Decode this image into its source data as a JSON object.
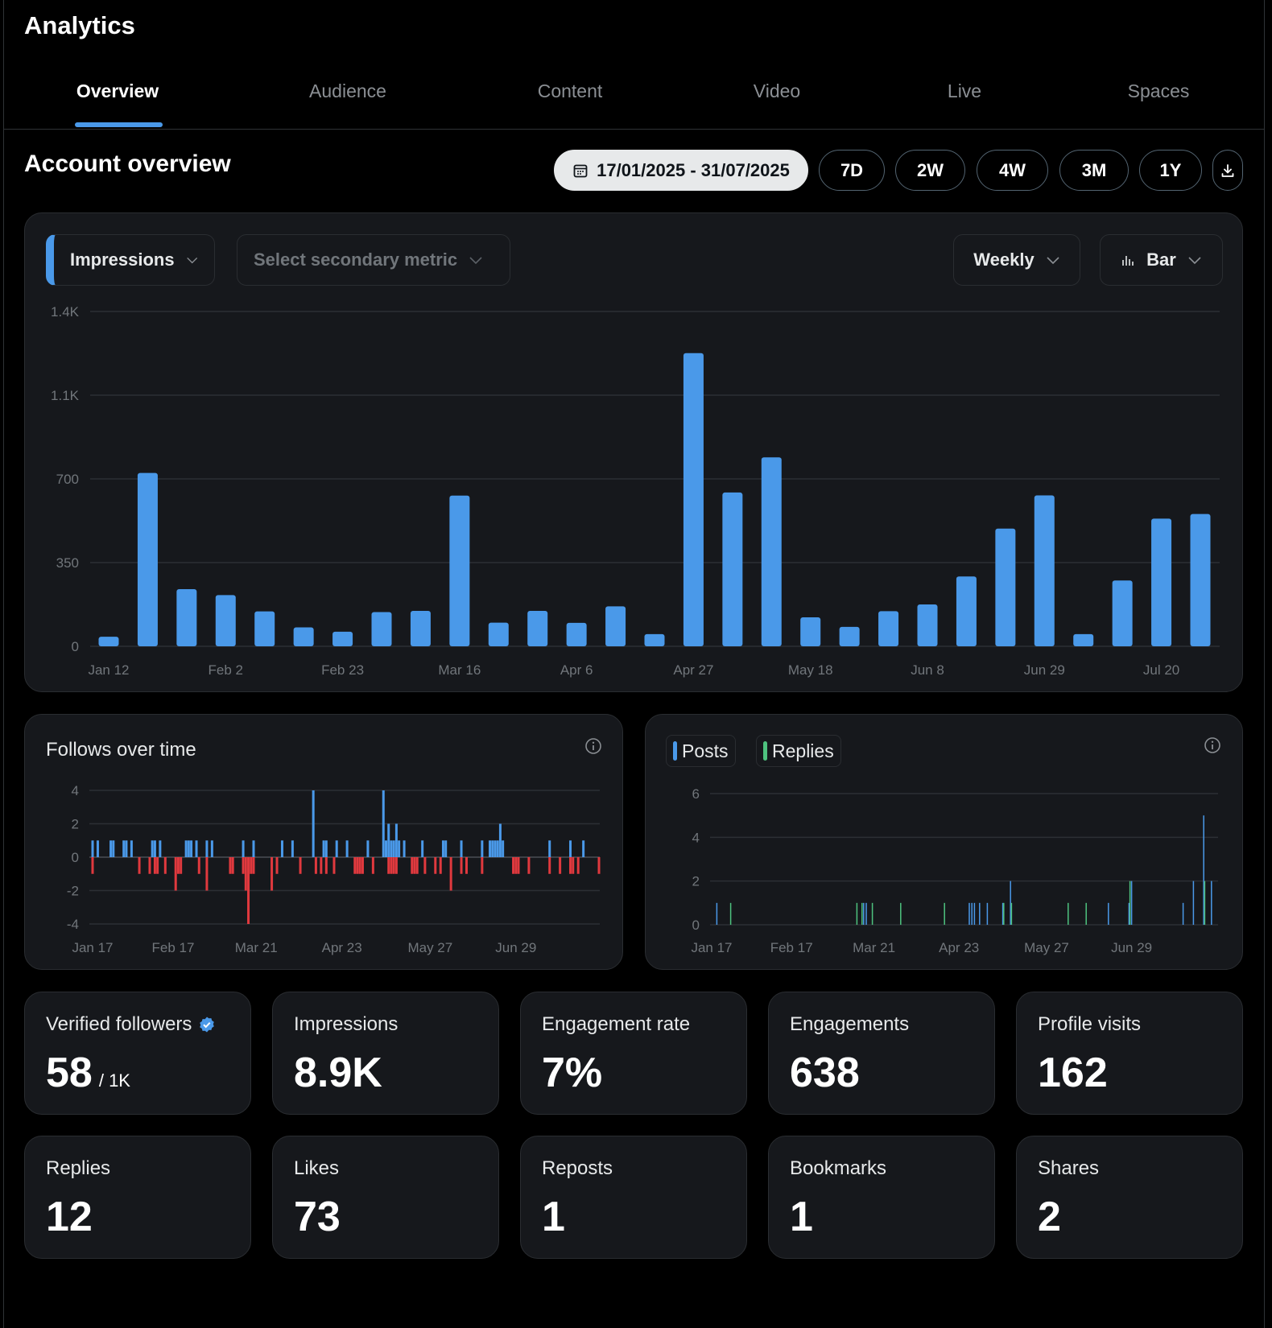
{
  "header": {
    "title": "Analytics"
  },
  "tabs": [
    {
      "label": "Overview",
      "active": true
    },
    {
      "label": "Audience"
    },
    {
      "label": "Content"
    },
    {
      "label": "Video"
    },
    {
      "label": "Live"
    },
    {
      "label": "Spaces"
    }
  ],
  "overview": {
    "title": "Account overview",
    "date_range": "17/01/2025 - 31/07/2025",
    "ranges": [
      "7D",
      "2W",
      "4W",
      "3M",
      "1Y"
    ],
    "primary_metric": "Impressions",
    "secondary_placeholder": "Select secondary metric",
    "interval": "Weekly",
    "chart_kind": "Bar"
  },
  "colors": {
    "accent": "#4a99e9",
    "negative": "#e0393e",
    "replies": "#4ec27f",
    "card": "#16181c"
  },
  "chart_data": [
    {
      "type": "bar",
      "title": "",
      "ylim": [
        0,
        1400
      ],
      "yticks": [
        "0",
        "350",
        "700",
        "1.1K",
        "1.4K"
      ],
      "ytick_values": [
        0,
        350,
        700,
        1050,
        1400
      ],
      "categories": [
        "Jan 12",
        "Jan 19",
        "Jan 26",
        "Feb 2",
        "Feb 9",
        "Feb 16",
        "Feb 23",
        "Mar 2",
        "Mar 9",
        "Mar 16",
        "Mar 23",
        "Mar 30",
        "Apr 6",
        "Apr 13",
        "Apr 20",
        "Apr 27",
        "May 4",
        "May 11",
        "May 18",
        "May 25",
        "Jun 1",
        "Jun 8",
        "Jun 15",
        "Jun 22",
        "Jun 29",
        "Jul 6",
        "Jul 13",
        "Jul 20",
        "Jul 27"
      ],
      "xtick_labels": [
        "Jan 12",
        "Feb 2",
        "Feb 23",
        "Mar 16",
        "Apr 6",
        "Apr 27",
        "May 18",
        "Jun 8",
        "Jun 29",
        "Jul 20"
      ],
      "series": [
        {
          "name": "Impressions",
          "values": [
            40,
            725,
            239,
            214,
            146,
            79,
            61,
            143,
            148,
            630,
            99,
            148,
            98,
            167,
            51,
            1226,
            643,
            790,
            121,
            81,
            147,
            175,
            292,
            492,
            631,
            51,
            275,
            534,
            553
          ]
        }
      ]
    },
    {
      "type": "bar",
      "title": "Follows over time",
      "ylim": [
        -4,
        4
      ],
      "yticks": [
        "4",
        "2",
        "0",
        "-2",
        "-4"
      ],
      "ytick_values": [
        4,
        2,
        0,
        -2,
        -4
      ],
      "xlim": [
        "2025-01-17",
        "2025-07-31"
      ],
      "xtick_labels": [
        "Jan 17",
        "Feb 17",
        "Mar 21",
        "Apr 23",
        "May 27",
        "Jun 29"
      ],
      "xtick_dates": [
        "2025-01-17",
        "2025-02-17",
        "2025-03-21",
        "2025-04-23",
        "2025-05-27",
        "2025-06-29"
      ],
      "gains": [
        [
          "2025-01-17",
          1
        ],
        [
          "2025-01-19",
          1
        ],
        [
          "2025-01-24",
          1
        ],
        [
          "2025-01-25",
          1
        ],
        [
          "2025-01-29",
          1
        ],
        [
          "2025-01-30",
          1
        ],
        [
          "2025-02-01",
          1
        ],
        [
          "2025-02-09",
          1
        ],
        [
          "2025-02-10",
          1
        ],
        [
          "2025-02-12",
          1
        ],
        [
          "2025-02-22",
          1
        ],
        [
          "2025-02-23",
          1
        ],
        [
          "2025-02-24",
          1
        ],
        [
          "2025-02-26",
          1
        ],
        [
          "2025-03-02",
          1
        ],
        [
          "2025-03-04",
          1
        ],
        [
          "2025-03-16",
          1
        ],
        [
          "2025-03-20",
          1
        ],
        [
          "2025-03-31",
          1
        ],
        [
          "2025-04-04",
          1
        ],
        [
          "2025-04-12",
          4
        ],
        [
          "2025-04-16",
          1
        ],
        [
          "2025-04-17",
          1
        ],
        [
          "2025-04-21",
          1
        ],
        [
          "2025-04-25",
          1
        ],
        [
          "2025-05-03",
          1
        ],
        [
          "2025-05-09",
          4
        ],
        [
          "2025-05-10",
          1
        ],
        [
          "2025-05-11",
          2
        ],
        [
          "2025-05-12",
          1
        ],
        [
          "2025-05-13",
          1
        ],
        [
          "2025-05-14",
          2
        ],
        [
          "2025-05-15",
          1
        ],
        [
          "2025-05-17",
          1
        ],
        [
          "2025-05-24",
          1
        ],
        [
          "2025-06-01",
          1
        ],
        [
          "2025-06-02",
          1
        ],
        [
          "2025-06-08",
          1
        ],
        [
          "2025-06-16",
          1
        ],
        [
          "2025-06-19",
          1
        ],
        [
          "2025-06-20",
          1
        ],
        [
          "2025-06-21",
          1
        ],
        [
          "2025-06-22",
          1
        ],
        [
          "2025-06-23",
          2
        ],
        [
          "2025-06-24",
          1
        ],
        [
          "2025-07-12",
          1
        ],
        [
          "2025-07-20",
          1
        ],
        [
          "2025-07-25",
          1
        ]
      ],
      "losses": [
        [
          "2025-01-17",
          -1
        ],
        [
          "2025-02-04",
          -1
        ],
        [
          "2025-02-08",
          -1
        ],
        [
          "2025-02-10",
          -1
        ],
        [
          "2025-02-11",
          -1
        ],
        [
          "2025-02-14",
          -1
        ],
        [
          "2025-02-18",
          -2
        ],
        [
          "2025-02-19",
          -1
        ],
        [
          "2025-02-20",
          -1
        ],
        [
          "2025-02-27",
          -1
        ],
        [
          "2025-03-02",
          -2
        ],
        [
          "2025-03-11",
          -1
        ],
        [
          "2025-03-12",
          -1
        ],
        [
          "2025-03-16",
          -1
        ],
        [
          "2025-03-17",
          -2
        ],
        [
          "2025-03-18",
          -4
        ],
        [
          "2025-03-19",
          -1
        ],
        [
          "2025-03-20",
          -1
        ],
        [
          "2025-03-27",
          -2
        ],
        [
          "2025-03-29",
          -1
        ],
        [
          "2025-04-07",
          -1
        ],
        [
          "2025-04-13",
          -1
        ],
        [
          "2025-04-15",
          -1
        ],
        [
          "2025-04-17",
          -1
        ],
        [
          "2025-04-20",
          -1
        ],
        [
          "2025-04-28",
          -1
        ],
        [
          "2025-04-29",
          -1
        ],
        [
          "2025-04-30",
          -1
        ],
        [
          "2025-05-01",
          -1
        ],
        [
          "2025-05-05",
          -1
        ],
        [
          "2025-05-11",
          -1
        ],
        [
          "2025-05-12",
          -1
        ],
        [
          "2025-05-13",
          -1
        ],
        [
          "2025-05-14",
          -1
        ],
        [
          "2025-05-20",
          -1
        ],
        [
          "2025-05-21",
          -1
        ],
        [
          "2025-05-22",
          -1
        ],
        [
          "2025-05-25",
          -1
        ],
        [
          "2025-05-29",
          -1
        ],
        [
          "2025-05-31",
          -1
        ],
        [
          "2025-06-04",
          -2
        ],
        [
          "2025-06-08",
          -1
        ],
        [
          "2025-06-10",
          -1
        ],
        [
          "2025-06-16",
          -1
        ],
        [
          "2025-06-28",
          -1
        ],
        [
          "2025-06-29",
          -1
        ],
        [
          "2025-06-30",
          -1
        ],
        [
          "2025-07-04",
          -1
        ],
        [
          "2025-07-12",
          -1
        ],
        [
          "2025-07-16",
          -1
        ],
        [
          "2025-07-20",
          -1
        ],
        [
          "2025-07-21",
          -1
        ],
        [
          "2025-07-23",
          -1
        ],
        [
          "2025-07-31",
          -1
        ]
      ]
    },
    {
      "type": "bar",
      "title": "",
      "ylim": [
        0,
        6
      ],
      "yticks": [
        "6",
        "4",
        "2",
        "0"
      ],
      "ytick_values": [
        6,
        4,
        2,
        0
      ],
      "xlim": [
        "2025-01-17",
        "2025-07-31"
      ],
      "xtick_labels": [
        "Jan 17",
        "Feb 17",
        "Mar 21",
        "Apr 23",
        "May 27",
        "Jun 29"
      ],
      "xtick_dates": [
        "2025-01-17",
        "2025-02-17",
        "2025-03-21",
        "2025-04-23",
        "2025-05-27",
        "2025-06-29"
      ],
      "legend": "top-left",
      "series": [
        {
          "name": "Posts",
          "points": [
            [
              "2025-01-19",
              1
            ],
            [
              "2025-03-17",
              1
            ],
            [
              "2025-03-18",
              1
            ],
            [
              "2025-04-27",
              1
            ],
            [
              "2025-04-28",
              1
            ],
            [
              "2025-04-29",
              1
            ],
            [
              "2025-05-01",
              1
            ],
            [
              "2025-05-04",
              1
            ],
            [
              "2025-05-10",
              1
            ],
            [
              "2025-05-13",
              2
            ],
            [
              "2025-06-20",
              1
            ],
            [
              "2025-06-28",
              1
            ],
            [
              "2025-06-29",
              2
            ],
            [
              "2025-07-19",
              1
            ],
            [
              "2025-07-23",
              2
            ],
            [
              "2025-07-27",
              5
            ],
            [
              "2025-07-30",
              2
            ]
          ]
        },
        {
          "name": "Replies",
          "points": [
            [
              "2025-01-24",
              1
            ],
            [
              "2025-03-14",
              1
            ],
            [
              "2025-03-16",
              1
            ],
            [
              "2025-03-20",
              1
            ],
            [
              "2025-03-31",
              1
            ],
            [
              "2025-04-17",
              1
            ],
            [
              "2025-05-10",
              1
            ],
            [
              "2025-05-13",
              1
            ],
            [
              "2025-06-04",
              1
            ],
            [
              "2025-06-11",
              1
            ],
            [
              "2025-06-28",
              2
            ],
            [
              "2025-07-27",
              2
            ]
          ]
        }
      ]
    }
  ],
  "stats": [
    {
      "label": "Verified followers",
      "value": "58",
      "sub": "/ 1K",
      "verified": true
    },
    {
      "label": "Impressions",
      "value": "8.9K"
    },
    {
      "label": "Engagement rate",
      "value": "7%"
    },
    {
      "label": "Engagements",
      "value": "638"
    },
    {
      "label": "Profile visits",
      "value": "162"
    },
    {
      "label": "Replies",
      "value": "12"
    },
    {
      "label": "Likes",
      "value": "73"
    },
    {
      "label": "Reposts",
      "value": "1"
    },
    {
      "label": "Bookmarks",
      "value": "1"
    },
    {
      "label": "Shares",
      "value": "2"
    }
  ]
}
